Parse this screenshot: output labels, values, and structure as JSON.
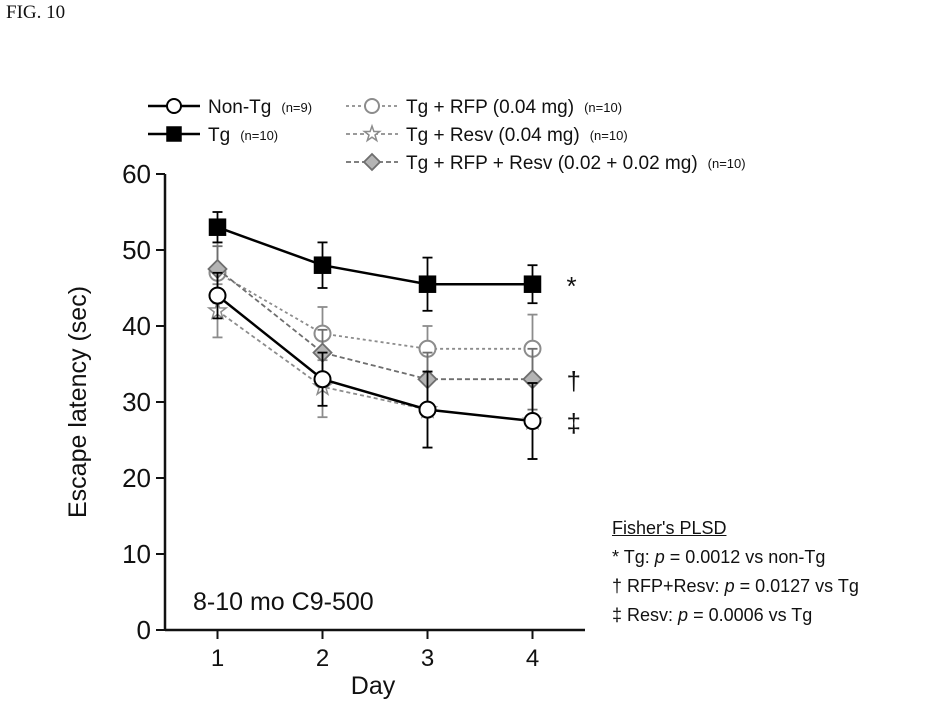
{
  "figure_label": "FIG. 10",
  "chart_data": {
    "type": "line",
    "title": "",
    "xlabel": "Day",
    "ylabel": "Escape latency (sec)",
    "x": [
      1,
      2,
      3,
      4
    ],
    "xlim": [
      0.5,
      4.5
    ],
    "ylim": [
      0,
      60
    ],
    "yticks": [
      0,
      10,
      20,
      30,
      40,
      50,
      60
    ],
    "annotation": "8-10 mo C9-500",
    "series": [
      {
        "key": "nontg",
        "name": "Non-Tg",
        "n": "(n=9)",
        "values": [
          44,
          33,
          29,
          27.5
        ],
        "errors": [
          3,
          3.5,
          5,
          5
        ],
        "color": "#000000",
        "marker": "circle",
        "fill": "#ffffff",
        "dash": ""
      },
      {
        "key": "tg",
        "name": "Tg",
        "n": "(n=10)",
        "values": [
          53,
          48,
          45.5,
          45.5
        ],
        "errors": [
          2,
          3,
          3.5,
          2.5
        ],
        "color": "#000000",
        "marker": "square",
        "fill": "#000000",
        "dash": ""
      },
      {
        "key": "rfp",
        "name": "Tg + RFP (0.04 mg)",
        "n": "(n=10)",
        "values": [
          47,
          39,
          37,
          37
        ],
        "errors": [
          4,
          3.5,
          3,
          4.5
        ],
        "color": "#8c8c8c",
        "marker": "circle",
        "fill": "#ffffff",
        "dash": "3,3"
      },
      {
        "key": "resv",
        "name": "Tg + Resv (0.04 mg)",
        "n": "(n=10)",
        "values": [
          42,
          32,
          29,
          27.5
        ],
        "errors": [
          3.5,
          4,
          5,
          5
        ],
        "color": "#8c8c8c",
        "marker": "star",
        "fill": "#ffffff",
        "dash": "4,3"
      },
      {
        "key": "rfpresv",
        "name": "Tg + RFP + Resv (0.02 + 0.02 mg)",
        "n": "(n=10)",
        "values": [
          47.5,
          36.5,
          33,
          33
        ],
        "errors": [
          3,
          3,
          3.5,
          4
        ],
        "color": "#6e6e6e",
        "marker": "diamond",
        "fill": "#b4b4b4",
        "dash": "5,3"
      }
    ],
    "significance": [
      {
        "symbol": "*",
        "value": 45.5
      },
      {
        "symbol": "†",
        "value": 33
      },
      {
        "symbol": "‡",
        "value": 27.5
      }
    ]
  },
  "stats": {
    "title": "Fisher's PLSD",
    "rows": [
      {
        "symbol": "*",
        "pre": "Tg: ",
        "p": "p",
        "post": " = 0.0012 vs non-Tg"
      },
      {
        "symbol": "†",
        "pre": "RFP+Resv: ",
        "p": "p",
        "post": " = 0.0127 vs Tg"
      },
      {
        "symbol": "‡",
        "pre": "Resv: ",
        "p": "p",
        "post": " = 0.0006 vs Tg"
      }
    ]
  }
}
